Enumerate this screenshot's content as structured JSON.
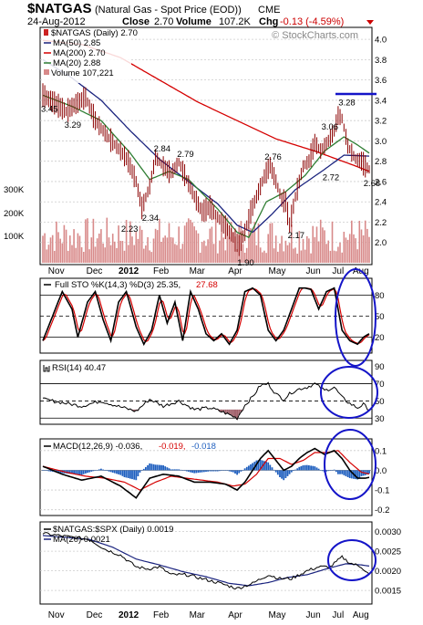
{
  "header": {
    "symbol": "$NATGAS",
    "name": "(Natural Gas - Spot Price (EOD))",
    "exchange": "CME",
    "date": "24-Aug-2012",
    "close_label": "Close",
    "close": "2.70",
    "volume_label": "Volume",
    "volume": "107.2K",
    "chg_label": "Chg",
    "chg": "-0.13 (-4.59%)",
    "watermark": "© StockCharts.com"
  },
  "colors": {
    "price_bars": "#8b0000",
    "ma50": "#1a237e",
    "ma200": "#d50000",
    "ma20": "#2e7d32",
    "volume": "#d88a8a",
    "annotation": "#1414c8",
    "sto_k": "#000000",
    "sto_d": "#d50000",
    "macd_hist": "#1f5fbf"
  },
  "xaxis": {
    "labels": [
      "Nov",
      "Dec",
      "2012",
      "Feb",
      "Mar",
      "Apr",
      "May",
      "Jun",
      "Jul",
      "Aug"
    ]
  },
  "chart_data": [
    {
      "type": "line",
      "panel": "price",
      "legend": {
        "title": "$NATGAS (Daily) 2.70",
        "ma50": "MA(50) 2.85",
        "ma200": "MA(200) 2.70",
        "ma20": "MA(20) 2.88",
        "volume": "Volume 107,221"
      },
      "ylim": [
        1.8,
        4.1
      ],
      "yticks": [
        "4.0",
        "3.8",
        "3.6",
        "3.4",
        "3.2",
        "3.0",
        "2.8",
        "2.6",
        "2.4",
        "2.2",
        "2.0"
      ],
      "volume_ticks": [
        "300K",
        "200K",
        "100K"
      ],
      "anchors": {
        "price": [
          [
            0,
            3.45
          ],
          [
            7,
            3.36
          ],
          [
            12,
            3.29
          ],
          [
            16,
            3.35
          ],
          [
            22,
            3.43
          ],
          [
            27,
            3.2
          ],
          [
            33,
            3.05
          ],
          [
            40,
            2.9
          ],
          [
            44,
            2.8
          ],
          [
            48,
            2.6
          ],
          [
            51,
            2.34
          ],
          [
            55,
            2.55
          ],
          [
            58,
            2.84
          ],
          [
            62,
            2.75
          ],
          [
            66,
            2.68
          ],
          [
            70,
            2.79
          ],
          [
            74,
            2.62
          ],
          [
            78,
            2.45
          ],
          [
            82,
            2.3
          ],
          [
            86,
            2.35
          ],
          [
            90,
            2.25
          ],
          [
            94,
            2.15
          ],
          [
            98,
            2.05
          ],
          [
            101,
            1.97
          ],
          [
            104,
            2.1
          ],
          [
            107,
            2.3
          ],
          [
            111,
            2.5
          ],
          [
            114,
            2.65
          ],
          [
            117,
            2.76
          ],
          [
            120,
            2.6
          ],
          [
            123,
            2.42
          ],
          [
            125,
            2.4
          ],
          [
            127,
            2.17
          ],
          [
            130,
            2.45
          ],
          [
            134,
            2.75
          ],
          [
            137,
            2.8
          ],
          [
            140,
            2.98
          ],
          [
            143,
            2.9
          ],
          [
            147,
            3.0
          ],
          [
            150,
            3.1
          ],
          [
            152,
            3.25
          ],
          [
            154,
            3.22
          ],
          [
            157,
            2.95
          ],
          [
            161,
            2.82
          ],
          [
            164,
            2.8
          ],
          [
            166,
            2.75
          ],
          [
            168,
            2.72
          ]
        ],
        "ma50": [
          [
            0,
            3.8
          ],
          [
            15,
            3.62
          ],
          [
            30,
            3.4
          ],
          [
            45,
            3.1
          ],
          [
            60,
            2.82
          ],
          [
            75,
            2.6
          ],
          [
            90,
            2.38
          ],
          [
            100,
            2.17
          ],
          [
            108,
            2.1
          ],
          [
            118,
            2.28
          ],
          [
            130,
            2.52
          ],
          [
            145,
            2.72
          ],
          [
            155,
            2.86
          ],
          [
            168,
            2.85
          ]
        ],
        "ma200": [
          [
            0,
            3.99
          ],
          [
            20,
            3.95
          ],
          [
            40,
            3.82
          ],
          [
            60,
            3.6
          ],
          [
            80,
            3.38
          ],
          [
            100,
            3.2
          ],
          [
            120,
            3.02
          ],
          [
            140,
            2.9
          ],
          [
            160,
            2.76
          ],
          [
            168,
            2.7
          ]
        ],
        "ma20": [
          [
            0,
            3.45
          ],
          [
            15,
            3.34
          ],
          [
            30,
            3.2
          ],
          [
            45,
            2.88
          ],
          [
            55,
            2.62
          ],
          [
            65,
            2.7
          ],
          [
            75,
            2.62
          ],
          [
            90,
            2.33
          ],
          [
            100,
            2.1
          ],
          [
            106,
            2.05
          ],
          [
            115,
            2.4
          ],
          [
            125,
            2.5
          ],
          [
            135,
            2.66
          ],
          [
            145,
            2.9
          ],
          [
            155,
            3.04
          ],
          [
            162,
            2.96
          ],
          [
            168,
            2.88
          ]
        ]
      },
      "annotations": [
        "3.45",
        "3.29",
        "2.84",
        "2.79",
        "2.34",
        "2.23",
        "1.90",
        "2.76",
        "2.17",
        "3.06",
        "3.28",
        "2.72",
        "2.68"
      ]
    },
    {
      "type": "line",
      "panel": "stochastic",
      "legend": {
        "title": "Full STO %K(14,3) %D(3) 25.35,",
        "d_value": "27.68"
      },
      "ylim": [
        0,
        100
      ],
      "yticks": [
        "80",
        "50",
        "20"
      ],
      "anchors": {
        "k": [
          [
            0,
            15
          ],
          [
            5,
            50
          ],
          [
            10,
            85
          ],
          [
            15,
            60
          ],
          [
            18,
            20
          ],
          [
            23,
            70
          ],
          [
            27,
            85
          ],
          [
            31,
            45
          ],
          [
            35,
            15
          ],
          [
            39,
            70
          ],
          [
            43,
            85
          ],
          [
            48,
            35
          ],
          [
            52,
            10
          ],
          [
            56,
            30
          ],
          [
            60,
            80
          ],
          [
            64,
            40
          ],
          [
            68,
            70
          ],
          [
            72,
            15
          ],
          [
            76,
            85
          ],
          [
            80,
            60
          ],
          [
            84,
            25
          ],
          [
            88,
            15
          ],
          [
            92,
            25
          ],
          [
            96,
            10
          ],
          [
            100,
            30
          ],
          [
            104,
            85
          ],
          [
            108,
            90
          ],
          [
            112,
            80
          ],
          [
            116,
            30
          ],
          [
            120,
            15
          ],
          [
            124,
            30
          ],
          [
            128,
            60
          ],
          [
            132,
            90
          ],
          [
            135,
            90
          ],
          [
            138,
            88
          ],
          [
            142,
            60
          ],
          [
            146,
            85
          ],
          [
            150,
            90
          ],
          [
            154,
            30
          ],
          [
            158,
            15
          ],
          [
            162,
            10
          ],
          [
            165,
            20
          ],
          [
            168,
            25
          ]
        ]
      }
    },
    {
      "type": "line",
      "panel": "rsi",
      "legend": {
        "title": "RSI(14) 40.47"
      },
      "ylim": [
        25,
        95
      ],
      "yticks": [
        "90",
        "70",
        "50",
        "30"
      ],
      "anchors": {
        "rsi": [
          [
            0,
            52
          ],
          [
            10,
            48
          ],
          [
            20,
            44
          ],
          [
            30,
            50
          ],
          [
            40,
            43
          ],
          [
            48,
            38
          ],
          [
            55,
            52
          ],
          [
            62,
            44
          ],
          [
            70,
            50
          ],
          [
            78,
            40
          ],
          [
            86,
            42
          ],
          [
            94,
            36
          ],
          [
            100,
            30
          ],
          [
            104,
            45
          ],
          [
            108,
            55
          ],
          [
            112,
            68
          ],
          [
            116,
            70
          ],
          [
            120,
            58
          ],
          [
            124,
            52
          ],
          [
            128,
            60
          ],
          [
            132,
            64
          ],
          [
            136,
            66
          ],
          [
            140,
            70
          ],
          [
            145,
            62
          ],
          [
            150,
            66
          ],
          [
            154,
            54
          ],
          [
            158,
            47
          ],
          [
            162,
            42
          ],
          [
            165,
            46
          ],
          [
            168,
            40
          ]
        ]
      }
    },
    {
      "type": "line",
      "panel": "macd",
      "legend": {
        "title": "MACD(12,26,9) -0.036,",
        "signal": "-0.019,",
        "hist": "-0.018"
      },
      "ylim": [
        -0.22,
        0.15
      ],
      "yticks": [
        "0.1",
        "0.0",
        "-0.1",
        "-0.2"
      ],
      "anchors": {
        "macd": [
          [
            0,
            0.02
          ],
          [
            10,
            -0.02
          ],
          [
            20,
            -0.05
          ],
          [
            30,
            -0.03
          ],
          [
            40,
            -0.08
          ],
          [
            48,
            -0.14
          ],
          [
            55,
            -0.04
          ],
          [
            62,
            -0.02
          ],
          [
            70,
            -0.03
          ],
          [
            78,
            -0.06
          ],
          [
            86,
            -0.06
          ],
          [
            94,
            -0.07
          ],
          [
            100,
            -0.1
          ],
          [
            104,
            -0.06
          ],
          [
            108,
            0.0
          ],
          [
            112,
            0.06
          ],
          [
            116,
            0.1
          ],
          [
            120,
            0.05
          ],
          [
            124,
            0.0
          ],
          [
            128,
            0.02
          ],
          [
            132,
            0.06
          ],
          [
            136,
            0.09
          ],
          [
            140,
            0.11
          ],
          [
            145,
            0.08
          ],
          [
            150,
            0.1
          ],
          [
            154,
            0.06
          ],
          [
            158,
            0.0
          ],
          [
            162,
            -0.04
          ],
          [
            166,
            -0.04
          ],
          [
            168,
            -0.036
          ]
        ],
        "signal": [
          [
            0,
            0.02
          ],
          [
            12,
            -0.01
          ],
          [
            22,
            -0.03
          ],
          [
            32,
            -0.04
          ],
          [
            42,
            -0.06
          ],
          [
            50,
            -0.1
          ],
          [
            58,
            -0.06
          ],
          [
            66,
            -0.03
          ],
          [
            74,
            -0.04
          ],
          [
            82,
            -0.05
          ],
          [
            90,
            -0.06
          ],
          [
            98,
            -0.08
          ],
          [
            104,
            -0.07
          ],
          [
            110,
            -0.02
          ],
          [
            116,
            0.06
          ],
          [
            122,
            0.06
          ],
          [
            128,
            0.03
          ],
          [
            134,
            0.05
          ],
          [
            140,
            0.09
          ],
          [
            146,
            0.09
          ],
          [
            152,
            0.1
          ],
          [
            158,
            0.04
          ],
          [
            164,
            -0.01
          ],
          [
            168,
            -0.019
          ]
        ]
      }
    },
    {
      "type": "line",
      "panel": "ratio",
      "legend": {
        "title": "$NATGAS:$SPX (Daily) 0.0019",
        "ma20": "MA(20) 0.0021"
      },
      "ylim": [
        0.0012,
        0.0032
      ],
      "yticks": [
        "0.0030",
        "0.0025",
        "0.0020",
        "0.0015"
      ],
      "anchors": {
        "ratio": [
          [
            0,
            0.00295
          ],
          [
            8,
            0.0029
          ],
          [
            16,
            0.00285
          ],
          [
            24,
            0.0028
          ],
          [
            32,
            0.00255
          ],
          [
            40,
            0.0024
          ],
          [
            48,
            0.0021
          ],
          [
            54,
            0.00205
          ],
          [
            60,
            0.0021
          ],
          [
            66,
            0.0019
          ],
          [
            74,
            0.0019
          ],
          [
            82,
            0.0018
          ],
          [
            90,
            0.0017
          ],
          [
            100,
            0.00155
          ],
          [
            108,
            0.00168
          ],
          [
            116,
            0.0019
          ],
          [
            122,
            0.0018
          ],
          [
            128,
            0.0018
          ],
          [
            136,
            0.002
          ],
          [
            142,
            0.0021
          ],
          [
            148,
            0.0021
          ],
          [
            154,
            0.00235
          ],
          [
            158,
            0.0022
          ],
          [
            164,
            0.0021
          ],
          [
            168,
            0.0019
          ]
        ],
        "ma20": [
          [
            0,
            0.0029
          ],
          [
            12,
            0.00285
          ],
          [
            24,
            0.0028
          ],
          [
            36,
            0.0026
          ],
          [
            48,
            0.0023
          ],
          [
            60,
            0.00215
          ],
          [
            72,
            0.00198
          ],
          [
            84,
            0.00185
          ],
          [
            96,
            0.00168
          ],
          [
            106,
            0.00162
          ],
          [
            116,
            0.0017
          ],
          [
            126,
            0.00183
          ],
          [
            136,
            0.0019
          ],
          [
            146,
            0.00205
          ],
          [
            156,
            0.00218
          ],
          [
            164,
            0.00215
          ],
          [
            168,
            0.00212
          ]
        ]
      }
    }
  ]
}
